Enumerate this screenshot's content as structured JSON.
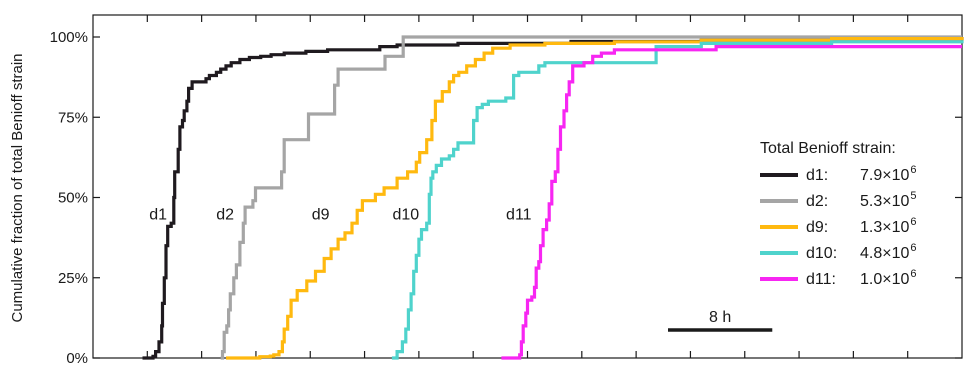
{
  "chart_data": {
    "type": "line",
    "ylabel": "Cumulative fraction of total Benioff strain",
    "ylim": [
      0,
      100
    ],
    "y_ticks": [
      "0%",
      "25%",
      "50%",
      "75%",
      "100%"
    ],
    "y_tick_values": [
      0,
      25,
      50,
      75,
      100
    ],
    "xlim": [
      0,
      100
    ],
    "x_minor_ticks": 16,
    "scale_bar": {
      "label": "8 h",
      "length": 12
    },
    "legend": {
      "title": "Total Benioff strain:",
      "placement": "right",
      "entries": [
        {
          "name": "d1:",
          "mantissa": "7.9×10",
          "exp": "6",
          "color": "#1f1a1f"
        },
        {
          "name": "d2:",
          "mantissa": "5.3×10",
          "exp": "5",
          "color": "#a5a5a5"
        },
        {
          "name": "d9:",
          "mantissa": "1.3×10",
          "exp": "6",
          "color": "#ffb90f"
        },
        {
          "name": "d10:",
          "mantissa": "4.8×10",
          "exp": "6",
          "color": "#4fd3cc"
        },
        {
          "name": "d11:",
          "mantissa": "1.0×10",
          "exp": "6",
          "color": "#f726f2"
        }
      ]
    },
    "series": [
      {
        "name": "d1",
        "color": "#1f1a1f",
        "label_at": [
          7.5,
          45
        ],
        "points": [
          [
            5.7,
            0
          ],
          [
            6.9,
            0.5
          ],
          [
            7.2,
            2
          ],
          [
            7.6,
            5
          ],
          [
            7.9,
            10
          ],
          [
            8.0,
            17
          ],
          [
            8.2,
            25
          ],
          [
            8.4,
            35
          ],
          [
            8.6,
            41
          ],
          [
            9.0,
            42
          ],
          [
            9.3,
            50
          ],
          [
            9.4,
            58
          ],
          [
            9.8,
            65
          ],
          [
            10.0,
            72
          ],
          [
            10.3,
            74
          ],
          [
            10.5,
            77
          ],
          [
            10.8,
            80
          ],
          [
            11.0,
            84
          ],
          [
            11.4,
            86
          ],
          [
            12.6,
            86
          ],
          [
            13.0,
            87
          ],
          [
            13.4,
            88
          ],
          [
            14.2,
            89
          ],
          [
            14.7,
            90
          ],
          [
            15.3,
            91
          ],
          [
            15.9,
            92
          ],
          [
            16.9,
            93
          ],
          [
            18.0,
            93.6
          ],
          [
            19.3,
            94
          ],
          [
            20.5,
            94.5
          ],
          [
            22.0,
            95
          ],
          [
            24.5,
            95.5
          ],
          [
            27.0,
            96
          ],
          [
            32.5,
            96
          ],
          [
            33.0,
            97
          ],
          [
            35.0,
            97.5
          ],
          [
            42.0,
            98
          ],
          [
            55.0,
            98.6
          ],
          [
            70.0,
            99
          ],
          [
            85.0,
            99.5
          ],
          [
            100,
            100
          ]
        ]
      },
      {
        "name": "d2",
        "color": "#a5a5a5",
        "label_at": [
          15.2,
          45
        ],
        "points": [
          [
            14.7,
            0
          ],
          [
            14.9,
            2
          ],
          [
            15.1,
            8
          ],
          [
            15.4,
            10
          ],
          [
            15.6,
            15
          ],
          [
            15.8,
            20
          ],
          [
            16.2,
            25
          ],
          [
            16.5,
            29
          ],
          [
            16.9,
            36
          ],
          [
            17.3,
            42
          ],
          [
            17.5,
            47
          ],
          [
            18.4,
            49
          ],
          [
            18.7,
            53
          ],
          [
            21.4,
            53
          ],
          [
            21.7,
            58
          ],
          [
            22.0,
            68
          ],
          [
            24.4,
            68
          ],
          [
            24.8,
            76
          ],
          [
            27.4,
            76
          ],
          [
            27.8,
            85
          ],
          [
            28.2,
            90
          ],
          [
            33.2,
            90
          ],
          [
            33.6,
            94
          ],
          [
            35.4,
            94
          ],
          [
            35.7,
            100
          ],
          [
            100,
            100
          ]
        ]
      },
      {
        "name": "d9",
        "color": "#ffb90f",
        "label_at": [
          26.2,
          45
        ],
        "points": [
          [
            15.3,
            0
          ],
          [
            18.8,
            0
          ],
          [
            19.2,
            0.4
          ],
          [
            20.4,
            0.6
          ],
          [
            20.8,
            1
          ],
          [
            21.4,
            2
          ],
          [
            21.8,
            5
          ],
          [
            22.0,
            9
          ],
          [
            22.4,
            13
          ],
          [
            22.8,
            18
          ],
          [
            23.5,
            21
          ],
          [
            24.6,
            24
          ],
          [
            25.6,
            27
          ],
          [
            26.6,
            31
          ],
          [
            27.4,
            34
          ],
          [
            28.2,
            37
          ],
          [
            29.0,
            39
          ],
          [
            29.8,
            42
          ],
          [
            30.4,
            46
          ],
          [
            31.0,
            49
          ],
          [
            32.5,
            51
          ],
          [
            33.5,
            53
          ],
          [
            35.0,
            56
          ],
          [
            36.2,
            58
          ],
          [
            37.2,
            61
          ],
          [
            37.6,
            64
          ],
          [
            38.4,
            68
          ],
          [
            39.0,
            74
          ],
          [
            39.4,
            80
          ],
          [
            40.2,
            83
          ],
          [
            41.0,
            86
          ],
          [
            41.5,
            88
          ],
          [
            42.1,
            89
          ],
          [
            43.0,
            91
          ],
          [
            44.0,
            93
          ],
          [
            45.0,
            95
          ],
          [
            46.0,
            96.5
          ],
          [
            48.0,
            97.5
          ],
          [
            52.0,
            98
          ],
          [
            60.0,
            98.5
          ],
          [
            70.0,
            99
          ],
          [
            85.0,
            99.5
          ],
          [
            100,
            100
          ]
        ]
      },
      {
        "name": "d10",
        "color": "#4fd3cc",
        "label_at": [
          36.0,
          45
        ],
        "points": [
          [
            34.4,
            0
          ],
          [
            35.0,
            2
          ],
          [
            35.6,
            5
          ],
          [
            36.0,
            9
          ],
          [
            36.3,
            15
          ],
          [
            36.6,
            20
          ],
          [
            36.9,
            27
          ],
          [
            37.2,
            32
          ],
          [
            37.5,
            37
          ],
          [
            37.8,
            40
          ],
          [
            38.4,
            42
          ],
          [
            38.7,
            51
          ],
          [
            38.9,
            56
          ],
          [
            39.1,
            58
          ],
          [
            39.5,
            60
          ],
          [
            40.1,
            62
          ],
          [
            41.0,
            63
          ],
          [
            41.5,
            65
          ],
          [
            42.0,
            67
          ],
          [
            43.5,
            67
          ],
          [
            43.8,
            74
          ],
          [
            44.2,
            78
          ],
          [
            44.8,
            79
          ],
          [
            45.5,
            80
          ],
          [
            47.5,
            81
          ],
          [
            48.1,
            81
          ],
          [
            48.4,
            88
          ],
          [
            49.0,
            89
          ],
          [
            51.0,
            89
          ],
          [
            51.3,
            91
          ],
          [
            52.0,
            92
          ],
          [
            64.5,
            92
          ],
          [
            64.8,
            97
          ],
          [
            70.0,
            98
          ],
          [
            85.0,
            98.5
          ],
          [
            100,
            99
          ]
        ]
      },
      {
        "name": "d11",
        "color": "#f726f2",
        "label_at": [
          49.0,
          45
        ],
        "points": [
          [
            47.0,
            0
          ],
          [
            48.8,
            0
          ],
          [
            49.1,
            1
          ],
          [
            49.3,
            5
          ],
          [
            49.5,
            10
          ],
          [
            49.8,
            14
          ],
          [
            50.0,
            18
          ],
          [
            50.5,
            19
          ],
          [
            50.8,
            22
          ],
          [
            51.0,
            28
          ],
          [
            51.3,
            30
          ],
          [
            51.5,
            35
          ],
          [
            51.8,
            40
          ],
          [
            52.2,
            43
          ],
          [
            52.5,
            48
          ],
          [
            52.8,
            55
          ],
          [
            53.2,
            58
          ],
          [
            53.5,
            65
          ],
          [
            53.8,
            72
          ],
          [
            54.2,
            77
          ],
          [
            54.5,
            82
          ],
          [
            54.8,
            86
          ],
          [
            55.2,
            91
          ],
          [
            56.5,
            92
          ],
          [
            57.5,
            94
          ],
          [
            58.5,
            95
          ],
          [
            60.0,
            96
          ],
          [
            71.5,
            96
          ],
          [
            71.7,
            97
          ],
          [
            100,
            97
          ]
        ]
      }
    ]
  }
}
